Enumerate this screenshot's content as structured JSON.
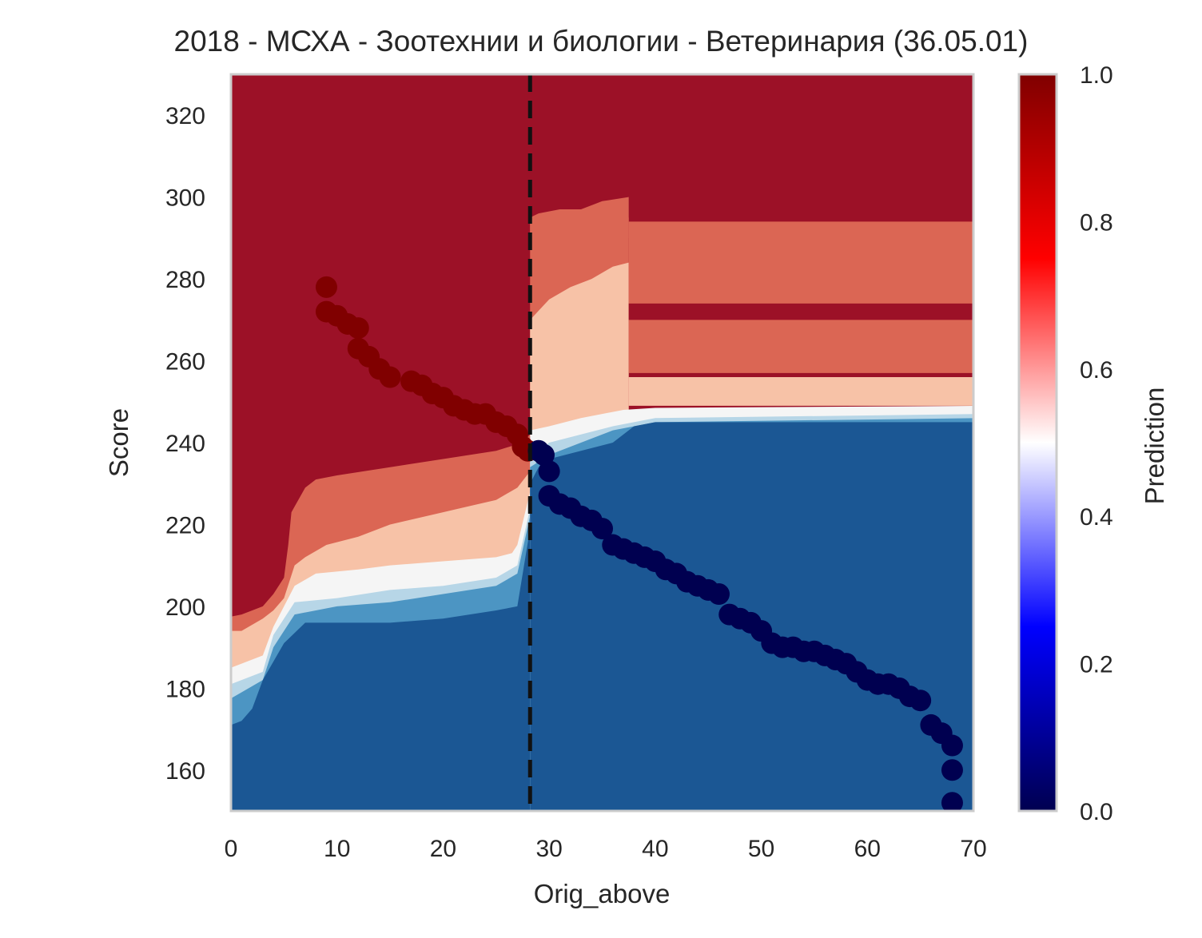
{
  "chart_data": {
    "type": "contour",
    "title": "2018 - МСХА - Зоотехнии и биологии - Ветеринария (36.05.01)",
    "xlabel": "Orig_above",
    "ylabel": "Score",
    "xlim": [
      0,
      70
    ],
    "ylim": [
      150,
      330
    ],
    "xticks": [
      0,
      10,
      20,
      30,
      40,
      50,
      60,
      70
    ],
    "yticks": [
      160,
      180,
      200,
      220,
      240,
      260,
      280,
      300,
      320
    ],
    "grid": false,
    "vline": {
      "x": 28.2,
      "style": "dashed",
      "color": "#111111"
    },
    "colorbar": {
      "label": "Prediction",
      "range": [
        0,
        1
      ],
      "ticks": [
        "0.0",
        "0.2",
        "0.4",
        "0.6",
        "0.8",
        "1.0"
      ],
      "stops": [
        "#000050",
        "#0000ff",
        "#ffffff",
        "#ff0000",
        "#800000"
      ]
    },
    "region_colors": {
      "red_dark": "#9c1127",
      "red_mid": "#db6654",
      "red_light": "#f7c2a7",
      "white": "#f5f5f5",
      "blue_light": "#b7d6e7",
      "blue_mid": "#4c95c3",
      "blue_dark": "#1b5794"
    },
    "series": [
      {
        "marker_color": "#800000",
        "x": [
          9,
          9,
          10,
          11,
          12,
          12,
          13,
          14,
          15,
          17,
          18,
          19,
          20,
          21,
          22,
          23,
          24,
          25,
          26,
          27,
          27.5,
          28
        ],
        "y": [
          278,
          272,
          271,
          269,
          268,
          263,
          261,
          258,
          256,
          255,
          254,
          252,
          251,
          249,
          248,
          247,
          247,
          245,
          244,
          242,
          239,
          238
        ]
      },
      {
        "marker_color": "#000050",
        "x": [
          29,
          29.5,
          30,
          30,
          31,
          32,
          33,
          34,
          35,
          36,
          37,
          38,
          39,
          40,
          41,
          42,
          43,
          44,
          45,
          46,
          47,
          48,
          49,
          50,
          51,
          52,
          53,
          54,
          55,
          56,
          57,
          58,
          59,
          60,
          61,
          62,
          63,
          64,
          65,
          66,
          67,
          68,
          68,
          68
        ],
        "y": [
          238,
          237,
          233,
          227,
          225,
          224,
          222,
          221,
          219,
          215,
          214,
          213,
          212,
          211,
          209,
          208,
          206,
          205,
          204,
          203,
          198,
          197,
          196,
          194,
          191,
          190,
          190,
          189,
          189,
          188,
          187,
          186,
          184,
          182,
          181,
          181,
          180,
          178,
          177,
          171,
          169,
          166,
          160,
          152
        ]
      }
    ]
  }
}
